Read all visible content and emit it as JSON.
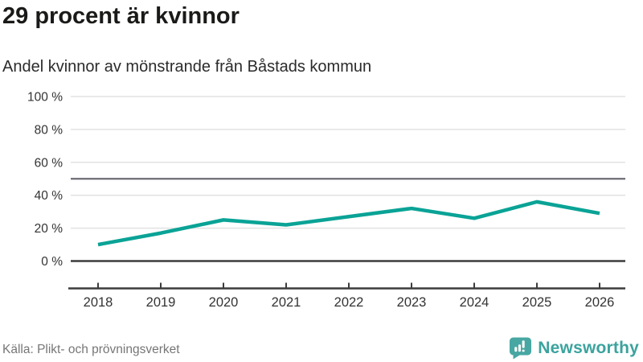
{
  "header": {
    "title": "29 procent är kvinnor",
    "subtitle": "Andel kvinnor av mönstrande från Båstads kommun"
  },
  "chart_data": {
    "type": "line",
    "title": "29 procent är kvinnor",
    "subtitle": "Andel kvinnor av mönstrande från Båstads kommun",
    "x": [
      2018,
      2019,
      2020,
      2021,
      2022,
      2023,
      2024,
      2025,
      2026
    ],
    "series": [
      {
        "name": "Andel kvinnor av mönstrande",
        "values": [
          10,
          17,
          25,
          22,
          27,
          32,
          26,
          36,
          29
        ]
      }
    ],
    "ylim": [
      0,
      100
    ],
    "yticks": [
      0,
      20,
      40,
      60,
      80,
      100
    ],
    "ytick_suffix": " %",
    "reference_line": 50,
    "grid": true,
    "legend": "none",
    "colors": {
      "line": "#0aa396",
      "grid": "#e2e2e2",
      "reference": "#6b6b74",
      "axis": "#3c3c3c",
      "tick_label": "#333333"
    }
  },
  "footer": {
    "source": "Källa: Plikt- och prövningsverket",
    "brand": {
      "name": "Newsworthy",
      "color": "#3ba39e",
      "icon": "newsworthy-bar-chart-bubble-icon"
    }
  }
}
